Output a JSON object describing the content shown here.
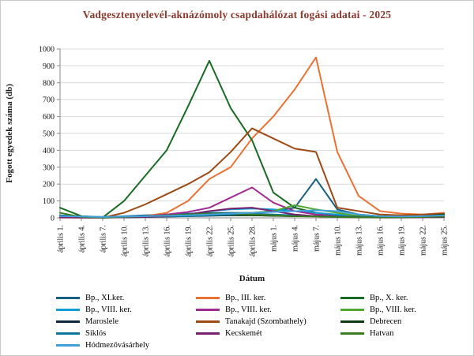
{
  "page": {
    "title": "Vadgesztenyelevél-aknázómoly csapdahálózat fogási adatai - 2025"
  },
  "chart_data": {
    "type": "line",
    "title": "Vadgesztenyelevél-aknázómoly csapdahálózat fogási adatai - 2025",
    "xlabel": "Dátum",
    "ylabel": "Fogott egyedek száma (db)",
    "ylim": [
      0,
      1000
    ],
    "ytick_step": 100,
    "grid": true,
    "legend_position": "bottom",
    "title_color": "#8b3a2e",
    "categories": [
      "április 1.",
      "április 4.",
      "április 7.",
      "április 10.",
      "április 13.",
      "április 16.",
      "április 19.",
      "április 22.",
      "április 25.",
      "április 28.",
      "május 1.",
      "május 4.",
      "május 7.",
      "május 10.",
      "május 13.",
      "május 16.",
      "május 19.",
      "május 22.",
      "május 25."
    ],
    "series": [
      {
        "name": "Bp., XI.ker.",
        "color": "#156082",
        "values": [
          15,
          10,
          5,
          10,
          15,
          20,
          25,
          30,
          30,
          30,
          40,
          60,
          230,
          50,
          20,
          10,
          5,
          10,
          15
        ]
      },
      {
        "name": "Bp., III. ker.",
        "color": "#e97132",
        "values": [
          5,
          3,
          2,
          5,
          10,
          30,
          100,
          230,
          300,
          470,
          600,
          760,
          950,
          390,
          130,
          40,
          25,
          20,
          30
        ]
      },
      {
        "name": "Bp., X. ker.",
        "color": "#196b24",
        "values": [
          60,
          10,
          2,
          100,
          250,
          400,
          660,
          930,
          650,
          460,
          150,
          60,
          30,
          15,
          10,
          8,
          5,
          8,
          10
        ]
      },
      {
        "name": "Bp., VIII. ker.",
        "color": "#0f9ed5",
        "values": [
          10,
          5,
          3,
          5,
          10,
          15,
          20,
          40,
          50,
          55,
          50,
          40,
          30,
          20,
          10,
          5,
          5,
          8,
          10
        ]
      },
      {
        "name": "Bp., VIII. ker.",
        "color": "#a02b93",
        "values": [
          5,
          3,
          2,
          5,
          10,
          20,
          35,
          60,
          120,
          180,
          90,
          40,
          20,
          10,
          5,
          3,
          3,
          5,
          8
        ]
      },
      {
        "name": "Bp., VIII. ker.",
        "color": "#4ea72e",
        "values": [
          5,
          3,
          2,
          3,
          5,
          10,
          15,
          20,
          25,
          30,
          40,
          75,
          50,
          30,
          10,
          5,
          3,
          5,
          8
        ]
      },
      {
        "name": "Maroslele",
        "color": "#0e2841",
        "values": [
          5,
          3,
          2,
          3,
          5,
          8,
          10,
          12,
          15,
          15,
          12,
          10,
          10,
          8,
          5,
          3,
          3,
          5,
          5
        ]
      },
      {
        "name": "Tanakajd (Szombathely)",
        "color": "#9e4a14",
        "values": [
          2,
          1,
          1,
          30,
          80,
          140,
          200,
          270,
          390,
          530,
          470,
          410,
          390,
          60,
          40,
          20,
          15,
          20,
          25
        ]
      },
      {
        "name": "Debrecen",
        "color": "#0c3b10",
        "values": [
          8,
          5,
          3,
          5,
          8,
          10,
          12,
          15,
          15,
          15,
          12,
          10,
          10,
          8,
          5,
          5,
          5,
          10,
          20
        ]
      },
      {
        "name": "Siklós",
        "color": "#0b76a0",
        "values": [
          5,
          3,
          2,
          3,
          5,
          8,
          10,
          15,
          20,
          25,
          20,
          15,
          10,
          8,
          5,
          3,
          3,
          5,
          8
        ]
      },
      {
        "name": "Kecskemét",
        "color": "#78206e",
        "values": [
          3,
          2,
          1,
          3,
          5,
          10,
          20,
          40,
          55,
          60,
          40,
          20,
          10,
          5,
          3,
          2,
          2,
          3,
          5
        ]
      },
      {
        "name": "Hatvan",
        "color": "#3a7d22",
        "values": [
          30,
          5,
          2,
          5,
          10,
          15,
          20,
          25,
          25,
          20,
          15,
          10,
          8,
          5,
          3,
          3,
          3,
          5,
          8
        ]
      },
      {
        "name": "Hódmezővásárhely",
        "color": "#41a0d9",
        "values": [
          10,
          8,
          5,
          8,
          10,
          12,
          15,
          20,
          25,
          30,
          35,
          40,
          45,
          40,
          20,
          10,
          8,
          10,
          15
        ]
      }
    ]
  }
}
